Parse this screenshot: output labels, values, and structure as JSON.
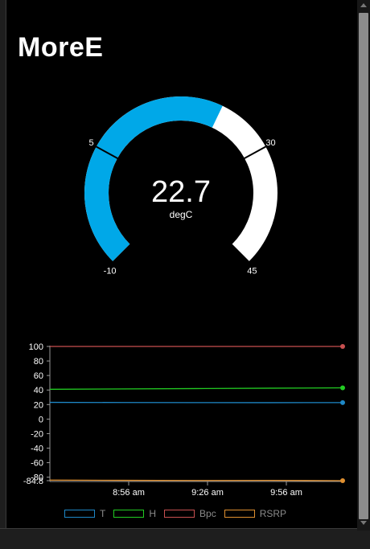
{
  "title": "MoreE",
  "gauge": {
    "value": 22.7,
    "value_text": "22.7",
    "unit": "degC",
    "min": -10,
    "max": 45,
    "threshold_low": 5,
    "threshold_high": 30,
    "labels": {
      "min": "-10",
      "max": "45",
      "low": "5",
      "high": "30"
    },
    "fill_color": "#00a8e8",
    "track_color": "#ffffff"
  },
  "chart_data": {
    "type": "line",
    "x_ticks": [
      "8:56 am",
      "9:26 am",
      "9:56 am"
    ],
    "y_ticks": [
      "100",
      "80",
      "60",
      "40",
      "20",
      "0",
      "-20",
      "-40",
      "-60",
      "-80",
      "-84.8"
    ],
    "ylim": [
      -84.8,
      100
    ],
    "series": [
      {
        "name": "T",
        "color": "#1e88c8",
        "values": [
          23,
          22.8,
          22.7,
          22.6,
          22.7
        ]
      },
      {
        "name": "H",
        "color": "#22cc22",
        "values": [
          41,
          41.5,
          42,
          42.5,
          43
        ]
      },
      {
        "name": "Bpc",
        "color": "#c85050",
        "values": [
          100,
          100,
          100,
          100,
          100
        ]
      },
      {
        "name": "RSRP",
        "color": "#e09030",
        "values": [
          -84,
          -84.3,
          -84.5,
          -84.4,
          -84.8
        ]
      }
    ],
    "legend": "bottom"
  }
}
